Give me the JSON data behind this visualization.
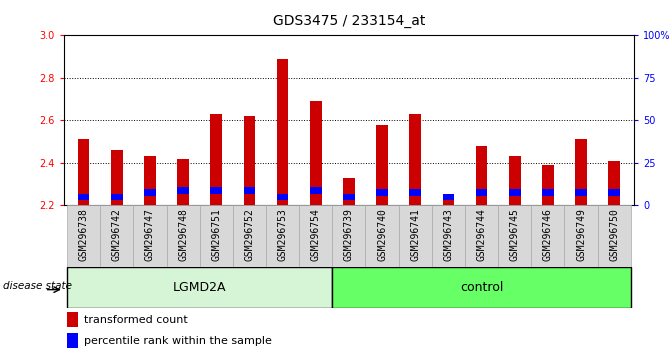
{
  "title": "GDS3475 / 233154_at",
  "samples": [
    "GSM296738",
    "GSM296742",
    "GSM296747",
    "GSM296748",
    "GSM296751",
    "GSM296752",
    "GSM296753",
    "GSM296754",
    "GSM296739",
    "GSM296740",
    "GSM296741",
    "GSM296743",
    "GSM296744",
    "GSM296745",
    "GSM296746",
    "GSM296749",
    "GSM296750"
  ],
  "groups": [
    "LGMD2A",
    "LGMD2A",
    "LGMD2A",
    "LGMD2A",
    "LGMD2A",
    "LGMD2A",
    "LGMD2A",
    "LGMD2A",
    "control",
    "control",
    "control",
    "control",
    "control",
    "control",
    "control",
    "control",
    "control"
  ],
  "red_values": [
    2.51,
    2.46,
    2.43,
    2.42,
    2.63,
    2.62,
    2.89,
    2.69,
    2.33,
    2.58,
    2.63,
    2.25,
    2.48,
    2.43,
    2.39,
    2.51,
    2.41
  ],
  "blue_bottoms": [
    2.225,
    2.225,
    2.245,
    2.255,
    2.255,
    2.255,
    2.225,
    2.255,
    2.225,
    2.245,
    2.245,
    2.225,
    2.245,
    2.245,
    2.245,
    2.245,
    2.245
  ],
  "blue_heights": [
    0.03,
    0.03,
    0.03,
    0.03,
    0.03,
    0.03,
    0.03,
    0.03,
    0.03,
    0.03,
    0.03,
    0.03,
    0.03,
    0.03,
    0.03,
    0.03,
    0.03
  ],
  "ymin": 2.2,
  "ymax": 3.0,
  "yticks": [
    2.2,
    2.4,
    2.6,
    2.8,
    3.0
  ],
  "right_yticks": [
    0,
    25,
    50,
    75,
    100
  ],
  "right_ytick_labels": [
    "0",
    "25",
    "50",
    "75",
    "100%"
  ],
  "group_colors": {
    "LGMD2A": "#d6f5d6",
    "control": "#66ff66"
  },
  "bar_width": 0.35,
  "title_fontsize": 10,
  "tick_fontsize": 7,
  "legend_fontsize": 8
}
